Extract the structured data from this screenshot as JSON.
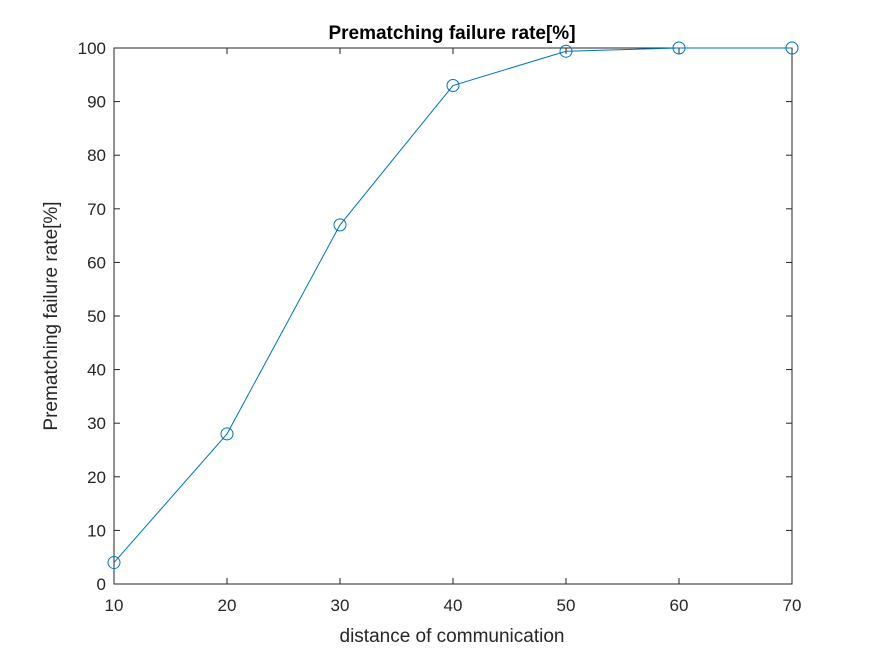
{
  "chart_data": {
    "type": "line",
    "title": "Prematching failure rate[%]",
    "xlabel": "distance of communication",
    "ylabel": "Prematching failure rate[%]",
    "xlim": [
      10,
      70
    ],
    "ylim": [
      0,
      100
    ],
    "xticks": [
      10,
      20,
      30,
      40,
      50,
      60,
      70
    ],
    "yticks": [
      0,
      10,
      20,
      30,
      40,
      50,
      60,
      70,
      80,
      90,
      100
    ],
    "grid": false,
    "legend": "none",
    "series": [
      {
        "marker": "circle",
        "color": "#0072BD",
        "x": [
          10,
          20,
          30,
          40,
          50,
          60,
          70
        ],
        "y": [
          4,
          28,
          67,
          93,
          99.4,
          100,
          100
        ]
      }
    ]
  }
}
